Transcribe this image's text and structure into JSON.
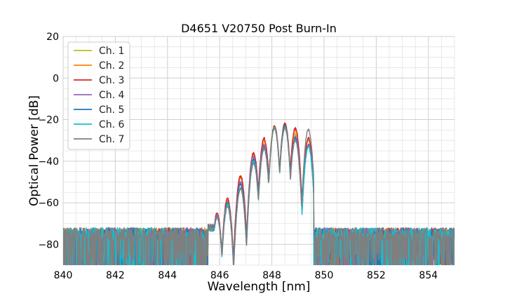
{
  "chart_data": {
    "type": "line",
    "title": "D4651 V20750 Post Burn-In",
    "xlabel": "Wavelength [nm]",
    "ylabel": "Optical Power [dB]",
    "xlim": [
      840,
      855
    ],
    "ylim": [
      -90,
      20
    ],
    "xticks": [
      840,
      842,
      844,
      846,
      848,
      850,
      852,
      854
    ],
    "yticks": [
      20,
      0,
      -20,
      -40,
      -60,
      -80
    ],
    "minor_x_step": 0.5,
    "minor_y_step": 5,
    "grid": true,
    "legend_position": "top-left",
    "noise_floor_db": -80,
    "series": [
      {
        "name": "Ch. 1",
        "color": "#bcbd22",
        "band": [
          845.55,
          849.6
        ],
        "peaks": [
          [
            845.9,
            -66
          ],
          [
            846.3,
            -59
          ],
          [
            846.8,
            -47
          ],
          [
            847.3,
            -37
          ],
          [
            847.7,
            -30
          ],
          [
            848.1,
            -24
          ],
          [
            848.5,
            -22
          ],
          [
            848.9,
            -27
          ],
          [
            849.4,
            -30
          ]
        ]
      },
      {
        "name": "Ch. 2",
        "color": "#ff7f0e",
        "band": [
          845.55,
          849.6
        ],
        "peaks": [
          [
            845.9,
            -66
          ],
          [
            846.3,
            -59
          ],
          [
            846.8,
            -48
          ],
          [
            847.3,
            -37
          ],
          [
            847.7,
            -30
          ],
          [
            848.1,
            -23
          ],
          [
            848.5,
            -22
          ],
          [
            848.9,
            -25
          ],
          [
            849.4,
            -29
          ]
        ]
      },
      {
        "name": "Ch. 3",
        "color": "#d62728",
        "band": [
          845.55,
          849.6
        ],
        "peaks": [
          [
            845.9,
            -65
          ],
          [
            846.3,
            -58
          ],
          [
            846.8,
            -47
          ],
          [
            847.3,
            -36
          ],
          [
            847.7,
            -29
          ],
          [
            848.1,
            -23
          ],
          [
            848.5,
            -22
          ],
          [
            848.9,
            -24
          ],
          [
            849.4,
            -29
          ]
        ]
      },
      {
        "name": "Ch. 4",
        "color": "#9467bd",
        "band": [
          845.55,
          849.6
        ],
        "peaks": [
          [
            845.9,
            -66
          ],
          [
            846.3,
            -60
          ],
          [
            846.8,
            -50
          ],
          [
            847.3,
            -38
          ],
          [
            847.7,
            -32
          ],
          [
            848.1,
            -24
          ],
          [
            848.5,
            -23
          ],
          [
            848.9,
            -28
          ],
          [
            849.4,
            -32
          ]
        ]
      },
      {
        "name": "Ch. 5",
        "color": "#1f77b4",
        "band": [
          845.55,
          849.6
        ],
        "peaks": [
          [
            845.9,
            -67
          ],
          [
            846.3,
            -60
          ],
          [
            846.8,
            -51
          ],
          [
            847.3,
            -39
          ],
          [
            847.7,
            -33
          ],
          [
            848.1,
            -24
          ],
          [
            848.5,
            -23
          ],
          [
            848.9,
            -29
          ],
          [
            849.4,
            -33
          ]
        ]
      },
      {
        "name": "Ch. 6",
        "color": "#17becf",
        "band": [
          845.55,
          849.6
        ],
        "peaks": [
          [
            845.9,
            -67
          ],
          [
            846.3,
            -61
          ],
          [
            846.8,
            -53
          ],
          [
            847.3,
            -40
          ],
          [
            847.7,
            -34
          ],
          [
            848.1,
            -24
          ],
          [
            848.5,
            -24
          ],
          [
            848.9,
            -30
          ],
          [
            849.4,
            -33
          ]
        ]
      },
      {
        "name": "Ch. 7",
        "color": "#7f7f7f",
        "band": [
          845.55,
          849.6
        ],
        "peaks": [
          [
            845.9,
            -67
          ],
          [
            846.3,
            -62
          ],
          [
            846.8,
            -53
          ],
          [
            847.3,
            -41
          ],
          [
            847.7,
            -34
          ],
          [
            848.1,
            -24
          ],
          [
            848.5,
            -24
          ],
          [
            848.9,
            -30
          ],
          [
            849.4,
            -25
          ]
        ]
      }
    ]
  }
}
